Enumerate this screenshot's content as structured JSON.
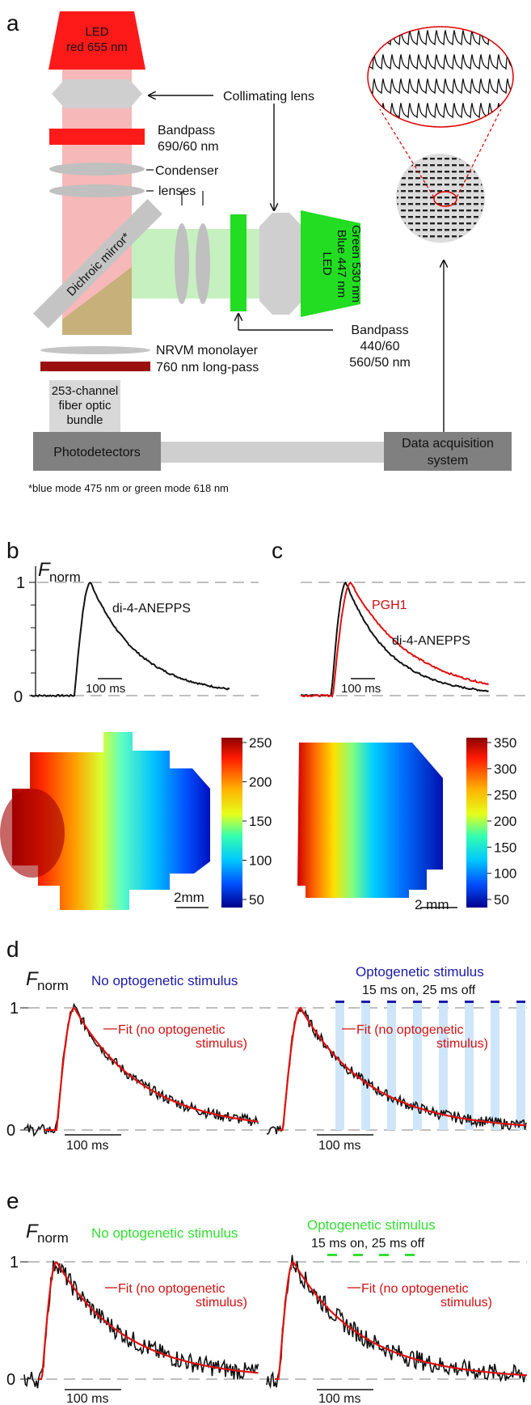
{
  "panel_a": {
    "panel_label": "a",
    "led_red": [
      "LED",
      "red 655 nm"
    ],
    "collimating_lens": "Collimating lens",
    "bandpass_red": [
      "Bandpass",
      "690/60 nm"
    ],
    "condenser": [
      "Condenser",
      "lenses"
    ],
    "dichroic": "Dichroic mirror*",
    "led_bg": [
      "LED",
      "Blue 447 nm",
      "Green 530 nm"
    ],
    "bandpass_bg": [
      "Bandpass",
      "440/60",
      "560/50 nm"
    ],
    "nrvm": "NRVM monolayer",
    "longpass": "760 nm long-pass",
    "fiber": [
      "253-channel",
      "fiber optic",
      "bundle"
    ],
    "photodetectors": "Photodetectors",
    "daq": [
      "Data acquisition",
      "system"
    ],
    "footnote": "*blue mode 475 nm or green mode 618 nm",
    "colors": {
      "red_led": "#ff1a1a",
      "red_beam": "#f6b8b8",
      "green_led": "#22dd22",
      "green_beam": "#c6f0bf",
      "dark_red_filter": "#9a0f0f"
    }
  },
  "panel_b": {
    "panel_label": "b",
    "ylabel_main": "F",
    "ylabel_sub": "norm",
    "ytick_1": "1",
    "ytick_0": "0",
    "trace_label": "di-4-ANEPPS",
    "scale_bar": "100 ms",
    "colorbar_ticks": [
      "250",
      "200",
      "150",
      "100",
      "50"
    ],
    "map_scale": "2mm"
  },
  "panel_c": {
    "panel_label": "c",
    "trace_label_red": "PGH1",
    "trace_label_black": "di-4-ANEPPS",
    "scale_bar": "100 ms",
    "colorbar_ticks": [
      "350",
      "300",
      "250",
      "200",
      "150",
      "100",
      "50"
    ],
    "map_scale": "2 mm"
  },
  "panel_d": {
    "panel_label": "d",
    "ylabel_main": "F",
    "ylabel_sub": "norm",
    "ytick_1": "1",
    "ytick_0": "0",
    "no_stim": "No optogenetic stimulus",
    "stim_title": "Optogenetic stimulus",
    "stim_timing": "15 ms on, 25 ms off",
    "fit": [
      "Fit (no optogenetic",
      "stimulus)"
    ],
    "scale_bar_1": "100 ms",
    "scale_bar_2": "100 ms",
    "stim_color": "#1a1aa8",
    "band_color": "#cfe6fa"
  },
  "panel_e": {
    "panel_label": "e",
    "ylabel_main": "F",
    "ylabel_sub": "norm",
    "ytick_1": "1",
    "ytick_0": "0",
    "no_stim": "No optogenetic stimulus",
    "stim_title": "Optogenetic stimulus",
    "stim_timing": "15 ms on, 25 ms off",
    "fit": [
      "Fit (no optogenetic",
      "stimulus)"
    ],
    "scale_bar_1": "100 ms",
    "scale_bar_2": "100 ms",
    "stim_color": "#33dd33"
  }
}
